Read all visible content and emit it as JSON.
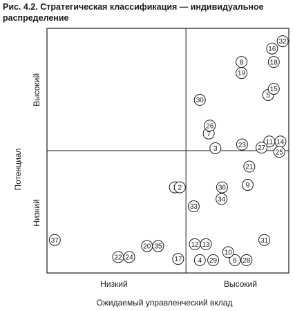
{
  "caption": {
    "line1": "Рис. 4.2. Стратегическая классификация — индивидуальное",
    "line2": "распределение"
  },
  "axes": {
    "y_title": "Потенциал",
    "y_levels": [
      "Высокий",
      "Низкий"
    ],
    "x_title": "Ожидаемый управленческий вклад",
    "x_levels": [
      "Низкий",
      "Высокий"
    ]
  },
  "points": [
    {
      "id": "1",
      "x": 2.3,
      "y": 1.4
    },
    {
      "id": "2",
      "x": 2.39,
      "y": 1.4
    },
    {
      "id": "3",
      "x": 3.03,
      "y": 2.04
    },
    {
      "id": "4",
      "x": 2.75,
      "y": 0.21
    },
    {
      "id": "5",
      "x": 3.98,
      "y": 2.91
    },
    {
      "id": "6",
      "x": 3.38,
      "y": 0.21
    },
    {
      "id": "7",
      "x": 2.91,
      "y": 2.28
    },
    {
      "id": "8",
      "x": 3.5,
      "y": 3.45
    },
    {
      "id": "9",
      "x": 3.61,
      "y": 1.44
    },
    {
      "id": "10",
      "x": 3.26,
      "y": 0.34
    },
    {
      "id": "11",
      "x": 4.0,
      "y": 2.15
    },
    {
      "id": "12",
      "x": 2.66,
      "y": 0.47
    },
    {
      "id": "13",
      "x": 2.86,
      "y": 0.47
    },
    {
      "id": "14",
      "x": 4.2,
      "y": 2.15
    },
    {
      "id": "15",
      "x": 4.08,
      "y": 3.01
    },
    {
      "id": "16",
      "x": 4.05,
      "y": 3.67
    },
    {
      "id": "17",
      "x": 2.36,
      "y": 0.23
    },
    {
      "id": "18",
      "x": 4.08,
      "y": 3.45
    },
    {
      "id": "19",
      "x": 3.5,
      "y": 3.27
    },
    {
      "id": "20",
      "x": 1.8,
      "y": 0.44
    },
    {
      "id": "21",
      "x": 3.64,
      "y": 1.74
    },
    {
      "id": "22",
      "x": 1.28,
      "y": 0.26
    },
    {
      "id": "23",
      "x": 3.51,
      "y": 2.1
    },
    {
      "id": "24",
      "x": 1.48,
      "y": 0.26
    },
    {
      "id": "25",
      "x": 4.18,
      "y": 1.98
    },
    {
      "id": "26",
      "x": 2.93,
      "y": 2.41
    },
    {
      "id": "27",
      "x": 3.86,
      "y": 2.05
    },
    {
      "id": "28",
      "x": 3.59,
      "y": 0.21
    },
    {
      "id": "29",
      "x": 2.99,
      "y": 0.21
    },
    {
      "id": "30",
      "x": 2.75,
      "y": 2.83
    },
    {
      "id": "31",
      "x": 3.91,
      "y": 0.54
    },
    {
      "id": "32",
      "x": 4.24,
      "y": 3.79
    },
    {
      "id": "33",
      "x": 2.64,
      "y": 1.09
    },
    {
      "id": "34",
      "x": 3.14,
      "y": 1.21
    },
    {
      "id": "35",
      "x": 2.0,
      "y": 0.44
    },
    {
      "id": "36",
      "x": 3.15,
      "y": 1.4
    },
    {
      "id": "37",
      "x": 0.14,
      "y": 0.54
    }
  ],
  "quadrant_split": {
    "x": 2.5,
    "y": 2.0
  },
  "extent": {
    "x": [
      0,
      4.35
    ],
    "y": [
      0,
      4.0
    ]
  }
}
